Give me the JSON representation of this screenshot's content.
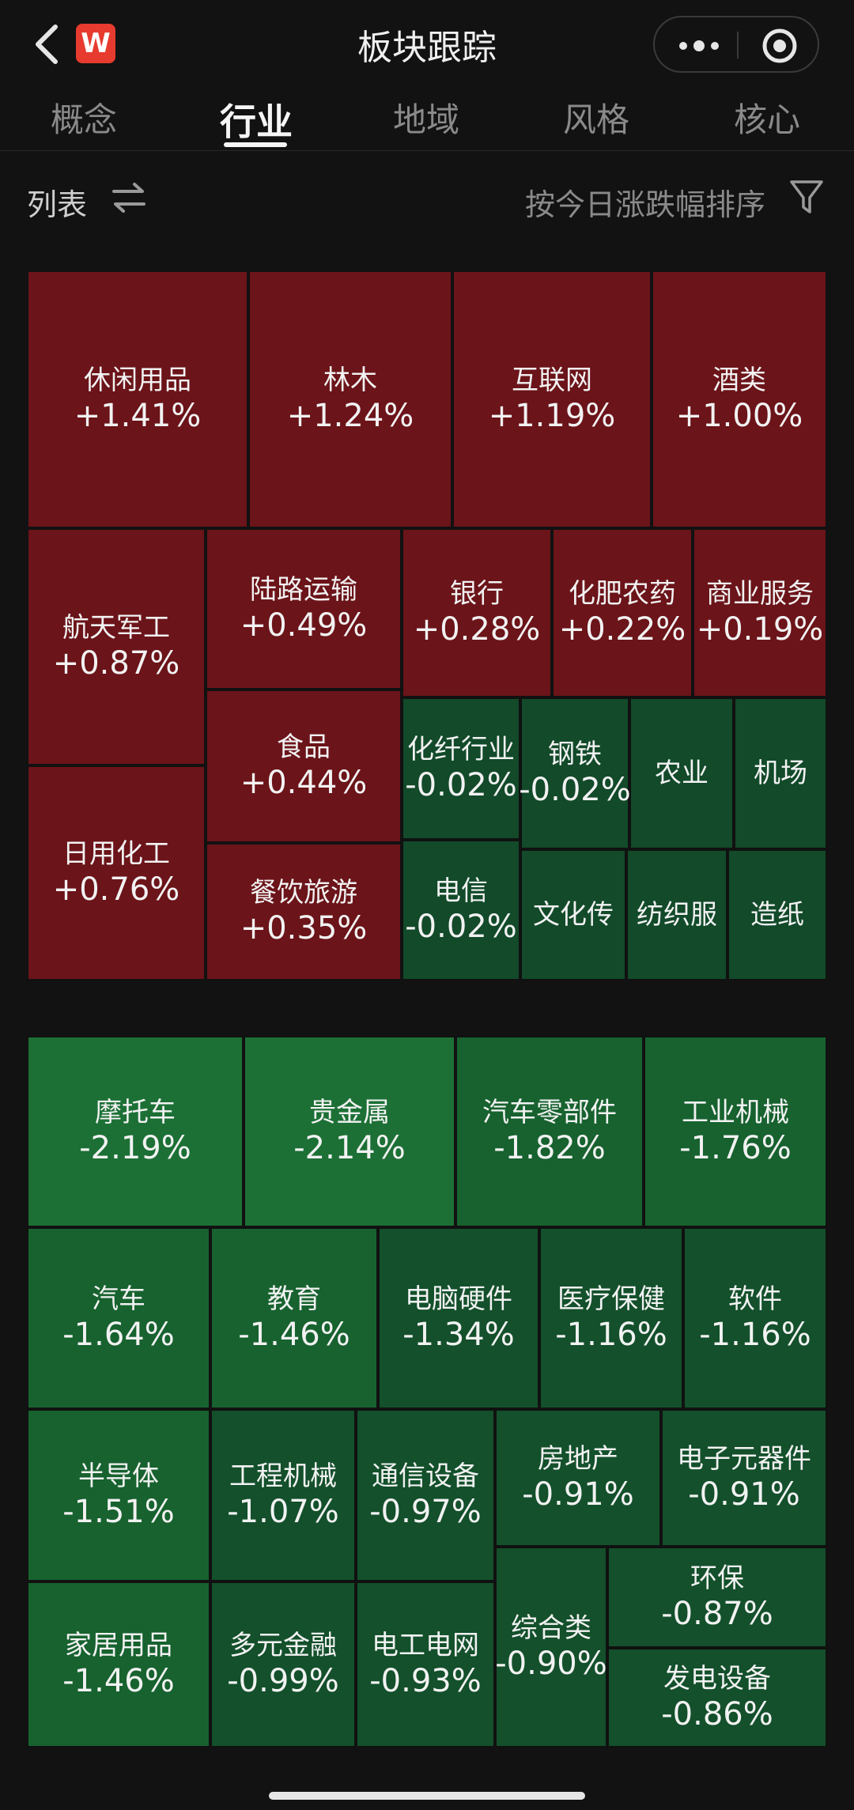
{
  "header": {
    "title": "板块跟踪",
    "logo_text": "W",
    "icons": {
      "back": "chevron-left-icon",
      "more": "more-dots-icon",
      "close": "target-circle-icon"
    }
  },
  "tabs": [
    {
      "label": "概念",
      "active": false
    },
    {
      "label": "行业",
      "active": true
    },
    {
      "label": "地域",
      "active": false
    },
    {
      "label": "风格",
      "active": false
    },
    {
      "label": "核心",
      "active": false
    }
  ],
  "toolbar": {
    "list_label": "列表",
    "sort_label": "按今日涨跌幅排序",
    "icons": {
      "switch": "swap-arrows-icon",
      "filter": "filter-icon"
    }
  },
  "colors": {
    "up": "#6b1419",
    "flat": "#124a2a",
    "down_dark": "#13502b",
    "down_mid": "#17622f",
    "down_bright": "#1c7035"
  },
  "gainers": [
    {
      "name": "休闲用品",
      "change": "+1.41%"
    },
    {
      "name": "林木",
      "change": "+1.24%"
    },
    {
      "name": "互联网",
      "change": "+1.19%"
    },
    {
      "name": "酒类",
      "change": "+1.00%"
    },
    {
      "name": "航天军工",
      "change": "+0.87%"
    },
    {
      "name": "陆路运输",
      "change": "+0.49%"
    },
    {
      "name": "银行",
      "change": "+0.28%"
    },
    {
      "name": "化肥农药",
      "change": "+0.22%"
    },
    {
      "name": "商业服务",
      "change": "+0.19%"
    },
    {
      "name": "食品",
      "change": "+0.44%"
    },
    {
      "name": "化纤行业",
      "change": "-0.02%"
    },
    {
      "name": "钢铁",
      "change": "-0.02%"
    },
    {
      "name": "农业",
      "change": ""
    },
    {
      "name": "机场",
      "change": ""
    },
    {
      "name": "日用化工",
      "change": "+0.76%"
    },
    {
      "name": "餐饮旅游",
      "change": "+0.35%"
    },
    {
      "name": "电信",
      "change": "-0.02%"
    },
    {
      "name": "文化传",
      "change": ""
    },
    {
      "name": "纺织服",
      "change": ""
    },
    {
      "name": "造纸",
      "change": ""
    }
  ],
  "losers": [
    {
      "name": "摩托车",
      "change": "-2.19%"
    },
    {
      "name": "贵金属",
      "change": "-2.14%"
    },
    {
      "name": "汽车零部件",
      "change": "-1.82%"
    },
    {
      "name": "工业机械",
      "change": "-1.76%"
    },
    {
      "name": "汽车",
      "change": "-1.64%"
    },
    {
      "name": "教育",
      "change": "-1.46%"
    },
    {
      "name": "电脑硬件",
      "change": "-1.34%"
    },
    {
      "name": "医疗保健",
      "change": "-1.16%"
    },
    {
      "name": "软件",
      "change": "-1.16%"
    },
    {
      "name": "半导体",
      "change": "-1.51%"
    },
    {
      "name": "工程机械",
      "change": "-1.07%"
    },
    {
      "name": "通信设备",
      "change": "-0.97%"
    },
    {
      "name": "房地产",
      "change": "-0.91%"
    },
    {
      "name": "电子元器件",
      "change": "-0.91%"
    },
    {
      "name": "环保",
      "change": "-0.87%"
    },
    {
      "name": "家居用品",
      "change": "-1.46%"
    },
    {
      "name": "多元金融",
      "change": "-0.99%"
    },
    {
      "name": "电工电网",
      "change": "-0.93%"
    },
    {
      "name": "综合类",
      "change": "-0.90%"
    },
    {
      "name": "发电设备",
      "change": "-0.86%"
    }
  ]
}
